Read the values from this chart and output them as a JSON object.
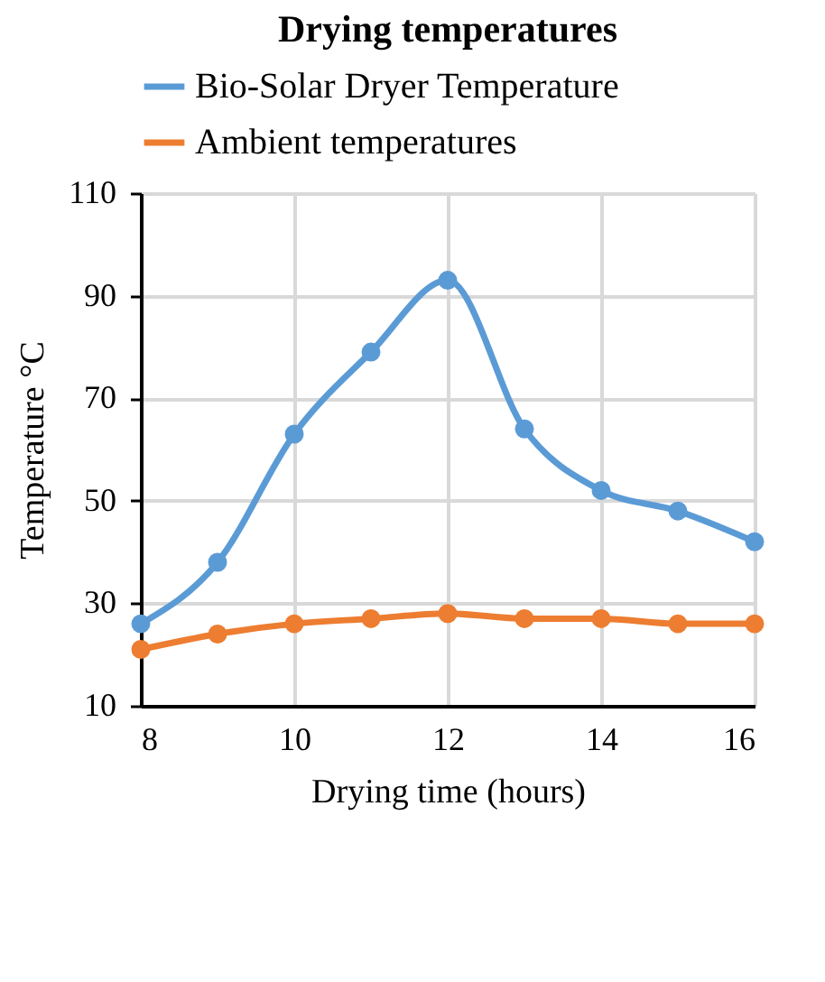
{
  "chart_data": {
    "type": "line",
    "title": "Drying temperatures",
    "xlabel": "Drying time (hours)",
    "ylabel": "Temperature °C",
    "x": [
      8,
      9,
      10,
      11,
      12,
      13,
      14,
      15,
      16
    ],
    "series": [
      {
        "name": "Bio-Solar Dryer Temperature",
        "color": "#5b9bd5",
        "values": [
          26,
          38,
          63,
          79,
          93,
          64,
          52,
          48,
          42
        ]
      },
      {
        "name": "Ambient temperatures",
        "color": "#ed7d31",
        "values": [
          21,
          24,
          26,
          27,
          28,
          27,
          27,
          26,
          26
        ]
      }
    ],
    "xlim": [
      8,
      16
    ],
    "xticks": [
      8,
      10,
      12,
      14,
      16
    ],
    "ylim": [
      10,
      110
    ],
    "yticks": [
      10,
      30,
      50,
      70,
      90,
      110
    ],
    "grid": true,
    "legend": "top",
    "marker": "circle",
    "line_style": "solid"
  }
}
